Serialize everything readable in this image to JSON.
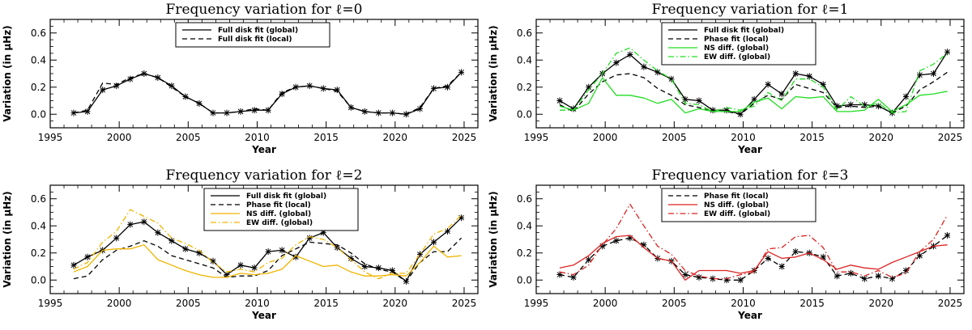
{
  "colors": {
    "axis": "#000000",
    "green": "#22dd22",
    "red": "#dd2222",
    "yellow": "#f0b400"
  },
  "chart_data": [
    {
      "type": "line",
      "title": "Frequency variation for ℓ=0",
      "xlabel": "Year",
      "ylabel": "Variation (in μHz)",
      "xlim": [
        1995,
        2026
      ],
      "ylim": [
        -0.1,
        0.7
      ],
      "xticks": [
        1995,
        2000,
        2005,
        2010,
        2015,
        2020,
        2025
      ],
      "yticks": [
        0.0,
        0.2,
        0.4,
        0.6
      ],
      "x": [
        1996.7,
        1997.7,
        1998.8,
        1999.8,
        2000.8,
        2001.8,
        2002.8,
        2003.8,
        2004.8,
        2005.8,
        2006.8,
        2007.8,
        2008.8,
        2009.8,
        2010.8,
        2011.8,
        2012.8,
        2013.8,
        2014.8,
        2015.8,
        2016.8,
        2017.8,
        2018.8,
        2019.8,
        2020.8,
        2021.8,
        2022.8,
        2023.8,
        2024.8
      ],
      "series": [
        {
          "name": "Full disk fit (global)",
          "style": "solid",
          "color": "#000000",
          "markers": true,
          "values": [
            0.01,
            0.02,
            0.18,
            0.21,
            0.26,
            0.3,
            0.27,
            0.21,
            0.13,
            0.08,
            0.01,
            0.01,
            0.02,
            0.03,
            0.03,
            0.15,
            0.2,
            0.21,
            0.19,
            0.18,
            0.05,
            0.02,
            0.01,
            0.01,
            0.0,
            0.04,
            0.19,
            0.2,
            0.31
          ]
        },
        {
          "name": "Full disk fit (local)",
          "style": "dashed",
          "color": "#000000",
          "markers": false,
          "values": [
            0.01,
            0.03,
            0.23,
            0.22,
            0.27,
            0.3,
            0.27,
            0.2,
            0.13,
            0.08,
            0.01,
            0.01,
            0.02,
            0.04,
            0.03,
            0.16,
            0.2,
            0.21,
            0.19,
            0.17,
            0.05,
            0.02,
            0.01,
            0.01,
            0.0,
            0.05,
            0.19,
            0.21,
            0.31
          ]
        }
      ]
    },
    {
      "type": "line",
      "title": "Frequency variation for ℓ=1",
      "xlabel": "Year",
      "ylabel": "Variation (in μHz)",
      "xlim": [
        1995,
        2026
      ],
      "ylim": [
        -0.1,
        0.7
      ],
      "xticks": [
        1995,
        2000,
        2005,
        2010,
        2015,
        2020,
        2025
      ],
      "yticks": [
        0.0,
        0.2,
        0.4,
        0.6
      ],
      "x": [
        1996.7,
        1997.7,
        1998.8,
        1999.8,
        2000.8,
        2001.8,
        2002.8,
        2003.8,
        2004.8,
        2005.8,
        2006.8,
        2007.8,
        2008.8,
        2009.8,
        2010.8,
        2011.8,
        2012.8,
        2013.8,
        2014.8,
        2015.8,
        2016.8,
        2017.8,
        2018.8,
        2019.8,
        2020.8,
        2021.8,
        2022.8,
        2023.8,
        2024.8
      ],
      "series": [
        {
          "name": "Full disk fit (global)",
          "style": "solid",
          "color": "#000000",
          "markers": true,
          "values": [
            0.1,
            0.04,
            0.2,
            0.3,
            0.38,
            0.44,
            0.35,
            0.31,
            0.26,
            0.11,
            0.1,
            0.03,
            0.03,
            0.0,
            0.11,
            0.22,
            0.15,
            0.3,
            0.28,
            0.22,
            0.06,
            0.07,
            0.07,
            0.06,
            0.01,
            0.13,
            0.29,
            0.3,
            0.46
          ]
        },
        {
          "name": "Phase fit (local)",
          "style": "dashed",
          "color": "#000000",
          "markers": false,
          "values": [
            0.07,
            0.02,
            0.15,
            0.24,
            0.29,
            0.3,
            0.27,
            0.19,
            0.14,
            0.07,
            0.05,
            0.02,
            0.02,
            0.0,
            0.08,
            0.14,
            0.11,
            0.22,
            0.19,
            0.16,
            0.05,
            0.06,
            0.05,
            0.06,
            0.01,
            0.06,
            0.18,
            0.24,
            0.31
          ]
        },
        {
          "name": "NS diff. (global)",
          "style": "solid",
          "color": "#22dd22",
          "markers": false,
          "values": [
            0.06,
            0.03,
            0.08,
            0.27,
            0.14,
            0.14,
            0.12,
            0.08,
            0.11,
            0.01,
            0.04,
            0.02,
            0.02,
            0.02,
            0.09,
            0.12,
            0.04,
            0.13,
            0.12,
            0.13,
            0.02,
            0.02,
            0.03,
            0.11,
            0.02,
            0.07,
            0.14,
            0.15,
            0.17
          ]
        },
        {
          "name": "EW diff. (global)",
          "style": "dashdot",
          "color": "#22dd22",
          "markers": false,
          "values": [
            0.03,
            0.03,
            0.18,
            0.3,
            0.45,
            0.49,
            0.4,
            0.32,
            0.26,
            0.08,
            0.07,
            0.02,
            0.05,
            0.03,
            0.06,
            0.16,
            0.1,
            0.26,
            0.26,
            0.2,
            0.03,
            0.13,
            0.06,
            0.08,
            0.01,
            0.02,
            0.32,
            0.37,
            0.45
          ]
        }
      ]
    },
    {
      "type": "line",
      "title": "Frequency variation for ℓ=2",
      "xlabel": "Year",
      "ylabel": "Variation (in μHz)",
      "xlim": [
        1995,
        2026
      ],
      "ylim": [
        -0.1,
        0.7
      ],
      "xticks": [
        1995,
        2000,
        2005,
        2010,
        2015,
        2020,
        2025
      ],
      "yticks": [
        0.0,
        0.2,
        0.4,
        0.6
      ],
      "x": [
        1996.7,
        1997.7,
        1998.8,
        1999.8,
        2000.8,
        2001.8,
        2002.8,
        2003.8,
        2004.8,
        2005.8,
        2006.8,
        2007.8,
        2008.8,
        2009.8,
        2010.8,
        2011.8,
        2012.8,
        2013.8,
        2014.8,
        2015.8,
        2016.8,
        2017.8,
        2018.8,
        2019.8,
        2020.8,
        2021.8,
        2022.8,
        2023.8,
        2024.8
      ],
      "series": [
        {
          "name": "Full disk fit (global)",
          "style": "solid",
          "color": "#000000",
          "markers": true,
          "values": [
            0.11,
            0.17,
            0.22,
            0.31,
            0.41,
            0.43,
            0.35,
            0.29,
            0.23,
            0.2,
            0.14,
            0.04,
            0.11,
            0.09,
            0.21,
            0.22,
            0.17,
            0.31,
            0.35,
            0.24,
            0.16,
            0.1,
            0.09,
            0.07,
            -0.01,
            0.19,
            0.28,
            0.36,
            0.46
          ]
        },
        {
          "name": "Phase fit (local)",
          "style": "dashed",
          "color": "#000000",
          "markers": false,
          "values": [
            0.01,
            0.03,
            0.15,
            0.22,
            0.25,
            0.29,
            0.25,
            0.18,
            0.15,
            0.12,
            0.09,
            0.02,
            0.03,
            0.03,
            0.07,
            0.18,
            0.23,
            0.28,
            0.27,
            0.26,
            0.2,
            0.12,
            0.08,
            0.06,
            -0.01,
            0.13,
            0.21,
            0.21,
            0.31
          ]
        },
        {
          "name": "NS diff. (global)",
          "style": "solid",
          "color": "#f0b400",
          "markers": false,
          "values": [
            0.06,
            0.1,
            0.22,
            0.23,
            0.23,
            0.26,
            0.15,
            0.11,
            0.07,
            0.04,
            0.02,
            0.02,
            0.05,
            0.04,
            0.05,
            0.08,
            0.18,
            0.14,
            0.1,
            0.11,
            0.06,
            0.03,
            0.03,
            0.04,
            0.03,
            0.13,
            0.25,
            0.17,
            0.18
          ]
        },
        {
          "name": "EW diff. (global)",
          "style": "dashdot",
          "color": "#f0b400",
          "markers": false,
          "values": [
            0.08,
            0.13,
            0.28,
            0.36,
            0.52,
            0.47,
            0.42,
            0.31,
            0.27,
            0.22,
            0.13,
            0.06,
            0.08,
            0.06,
            0.13,
            0.16,
            0.26,
            0.32,
            0.3,
            0.24,
            0.15,
            0.06,
            0.01,
            0.05,
            0.05,
            0.19,
            0.34,
            0.38,
            0.48
          ]
        }
      ]
    },
    {
      "type": "line",
      "title": "Frequency variation for ℓ=3",
      "xlabel": "Year",
      "ylabel": "Variation (in μHz)",
      "xlim": [
        1995,
        2026
      ],
      "ylim": [
        -0.1,
        0.7
      ],
      "xticks": [
        1995,
        2000,
        2005,
        2010,
        2015,
        2020,
        2025
      ],
      "yticks": [
        0.0,
        0.2,
        0.4,
        0.6
      ],
      "x": [
        1996.7,
        1997.7,
        1998.8,
        1999.8,
        2000.8,
        2001.8,
        2002.8,
        2003.8,
        2004.8,
        2005.8,
        2006.8,
        2007.8,
        2008.8,
        2009.8,
        2010.8,
        2011.8,
        2012.8,
        2013.8,
        2014.8,
        2015.8,
        2016.8,
        2017.8,
        2018.8,
        2019.8,
        2020.8,
        2021.8,
        2022.8,
        2023.8,
        2024.8
      ],
      "series": [
        {
          "name": "Phase fit (local)",
          "style": "dashed",
          "color": "#000000",
          "markers": true,
          "values": [
            0.04,
            0.02,
            0.15,
            0.25,
            0.29,
            0.31,
            0.26,
            0.16,
            0.14,
            0.04,
            0.02,
            0.01,
            0.0,
            0.0,
            0.07,
            0.16,
            0.1,
            0.21,
            0.2,
            0.17,
            0.03,
            0.05,
            0.01,
            0.03,
            0.01,
            0.07,
            0.18,
            0.25,
            0.33
          ]
        },
        {
          "name": "NS diff. (global)",
          "style": "solid",
          "color": "#dd2222",
          "markers": false,
          "values": [
            0.09,
            0.11,
            0.18,
            0.27,
            0.32,
            0.33,
            0.24,
            0.16,
            0.14,
            0.0,
            0.07,
            0.07,
            0.07,
            0.05,
            0.07,
            0.21,
            0.16,
            0.17,
            0.2,
            0.15,
            0.08,
            0.11,
            0.09,
            0.08,
            0.13,
            0.17,
            0.21,
            0.25,
            0.26
          ]
        },
        {
          "name": "EW diff. (global)",
          "style": "dashdot",
          "color": "#dd2222",
          "markers": false,
          "values": [
            0.06,
            0.04,
            0.11,
            0.26,
            0.38,
            0.56,
            0.4,
            0.25,
            0.19,
            0.07,
            0.03,
            0.01,
            0.01,
            0.04,
            0.06,
            0.23,
            0.24,
            0.32,
            0.33,
            0.24,
            0.06,
            0.06,
            0.03,
            0.07,
            0.02,
            0.05,
            0.21,
            0.3,
            0.48
          ]
        }
      ]
    }
  ]
}
